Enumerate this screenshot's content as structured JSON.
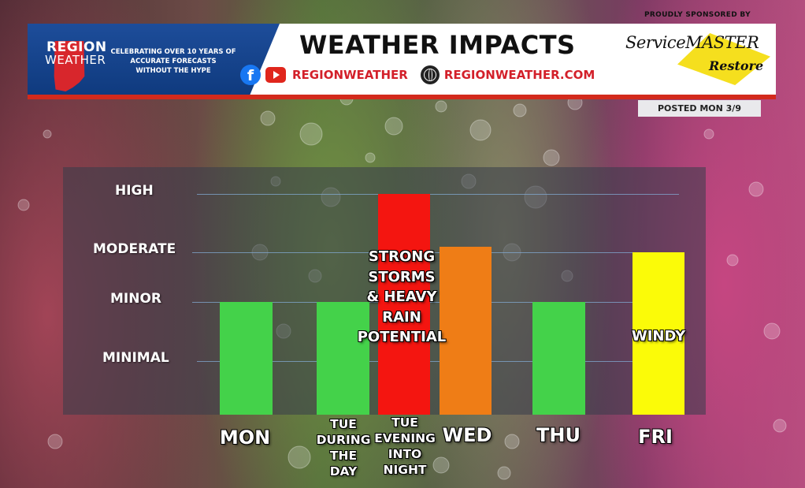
{
  "header": {
    "logo_top": "REGION",
    "logo_bottom": "WEATHER",
    "tagline": [
      "CELEBRATING OVER 10 YEARS OF",
      "ACCURATE FORECASTS",
      "WITHOUT THE HYPE"
    ],
    "title": "WEATHER IMPACTS",
    "social_handle": "REGIONWEATHER",
    "website": "REGIONWEATHER.COM",
    "sponsor_label": "PROUDLY SPONSORED BY",
    "sponsor_name": "ServiceMASTER",
    "sponsor_sub": "Restore",
    "posted": "POSTED MON 3/9",
    "icons": {
      "facebook": "facebook-icon",
      "youtube": "youtube-icon",
      "globe": "globe-icon"
    }
  },
  "chart_data": {
    "type": "bar",
    "title": "WEATHER IMPACTS",
    "levels": [
      "MINIMAL",
      "MINOR",
      "MODERATE",
      "HIGH"
    ],
    "ylim": [
      0,
      3
    ],
    "categories": [
      "MON",
      "TUE DURING THE DAY",
      "TUE EVENING INTO NIGHT",
      "WED",
      "THU",
      "FRI"
    ],
    "values": [
      1,
      1,
      3,
      2.1,
      1,
      2
    ],
    "colors": [
      "#44d24a",
      "#44d24a",
      "#f41510",
      "#ef7d16",
      "#44d24a",
      "#fbfb08"
    ],
    "annotations": [
      {
        "category": "TUE EVENING INTO NIGHT",
        "text": [
          "STRONG",
          "STORMS",
          "& HEAVY",
          "RAIN",
          "POTENTIAL"
        ]
      },
      {
        "category": "FRI",
        "text": [
          "WINDY"
        ]
      }
    ],
    "grid": true
  }
}
